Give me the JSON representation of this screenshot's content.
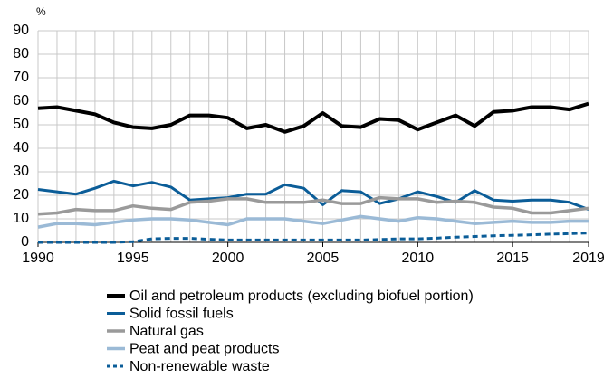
{
  "chart_data": {
    "type": "line",
    "ylabel": "%",
    "x": [
      1990,
      1991,
      1992,
      1993,
      1994,
      1995,
      1996,
      1997,
      1998,
      1999,
      2000,
      2001,
      2002,
      2003,
      2004,
      2005,
      2006,
      2007,
      2008,
      2009,
      2010,
      2011,
      2012,
      2013,
      2014,
      2015,
      2016,
      2017,
      2018,
      2019
    ],
    "series": [
      {
        "name": "Oil and petroleum products (excluding biofuel portion)",
        "color": "#000000",
        "width": 4,
        "values": [
          57,
          57.5,
          56,
          54.5,
          51,
          49,
          48.5,
          50,
          54,
          54,
          53,
          48.5,
          50,
          47,
          49.5,
          55,
          49.5,
          49,
          52.5,
          52,
          48,
          51,
          54,
          49.5,
          55.5,
          56,
          57.5,
          57.5,
          56.5,
          59
        ]
      },
      {
        "name": "Solid fossil fuels",
        "color": "#0b5d98",
        "width": 3,
        "values": [
          22.5,
          21.5,
          20.5,
          23,
          26,
          24,
          25.5,
          23.5,
          18,
          18.5,
          19,
          20.5,
          20.5,
          24.5,
          23,
          16,
          22,
          21.5,
          16.5,
          18.5,
          21.5,
          19.5,
          17,
          22,
          18,
          17.5,
          18,
          18,
          17,
          14
        ]
      },
      {
        "name": "Natural gas",
        "color": "#9a9a9a",
        "width": 3.5,
        "values": [
          12,
          12.5,
          14,
          13.5,
          13.5,
          15.5,
          14.5,
          14,
          17,
          17.5,
          18.5,
          18.5,
          17,
          17,
          17,
          18,
          16.5,
          16.5,
          19,
          18.5,
          18.5,
          17,
          17.5,
          17,
          15,
          14.5,
          12.5,
          12.5,
          13.5,
          14.5
        ]
      },
      {
        "name": "Peat and peat products",
        "color": "#9bbad6",
        "width": 3.5,
        "values": [
          6.5,
          8,
          8,
          7.5,
          8.5,
          9.5,
          10,
          10,
          9.5,
          8.5,
          7.5,
          10,
          10,
          10,
          9,
          8,
          9.5,
          11,
          10,
          9,
          10.5,
          10,
          9,
          8,
          8.5,
          9,
          8.5,
          8.5,
          9,
          9
        ]
      },
      {
        "name": "Non-renewable waste",
        "color": "#0b5d98",
        "width": 3,
        "linestyle": "dashed",
        "values": [
          0,
          0,
          0,
          0,
          0,
          0.3,
          1.5,
          1.7,
          1.7,
          1.3,
          1,
          1,
          1,
          1,
          1,
          1,
          1,
          1,
          1.2,
          1.5,
          1.5,
          1.8,
          2.2,
          2.5,
          2.8,
          3,
          3.2,
          3.5,
          3.7,
          4
        ]
      }
    ],
    "xlim": [
      1990,
      2019
    ],
    "xticks": [
      1990,
      1995,
      2000,
      2005,
      2010,
      2015,
      2019
    ],
    "ylim": [
      0,
      90
    ],
    "yticks": [
      0,
      10,
      20,
      30,
      40,
      50,
      60,
      70,
      80,
      90
    ],
    "grid": true
  }
}
